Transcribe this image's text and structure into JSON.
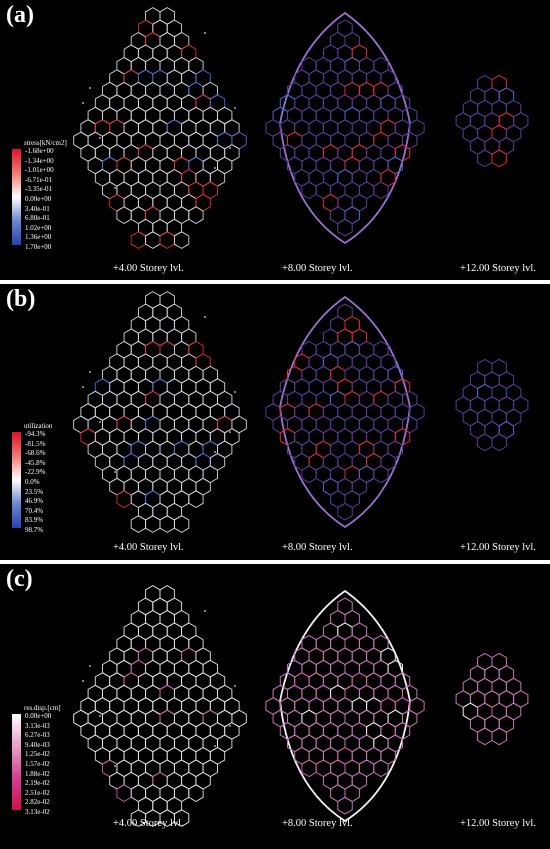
{
  "panels": [
    {
      "id": "a",
      "label": "(a)",
      "legend": {
        "title": "stress[kN/cm2]",
        "ticks": [
          "-1.68e+00",
          "-1.34e+00",
          "-1.01e+00",
          "-6.71e-01",
          "-3.35e-01",
          "0.00e+00",
          "3.40e-01",
          "6.80e-01",
          "1.02e+00",
          "1.36e+00",
          "1.70e+00"
        ],
        "gradient": [
          "#e0102a",
          "#f07a70",
          "#ffffff",
          "#6a86d0",
          "#2a40b0"
        ]
      },
      "levels": [
        "+4.00 Storey lvl.",
        "+8.00 Storey lvl.",
        "+12.00 Storey lvl."
      ],
      "palette": {
        "plan1": "#d8d8e6",
        "plan2": "#5a3c9a",
        "plan3": "#5a3c9a",
        "accent": "#e8283a",
        "accent2": "#4a6ad8"
      }
    },
    {
      "id": "b",
      "label": "(b)",
      "legend": {
        "title": "utilization",
        "ticks": [
          "-94.3%",
          "-81.5%",
          "-68.6%",
          "-45.8%",
          "-22.9%",
          "0.0%",
          "23.5%",
          "46.9%",
          "70.4%",
          "83.9%",
          "98.7%"
        ],
        "gradient": [
          "#e0102a",
          "#f07a70",
          "#ffffff",
          "#6a86d0",
          "#2a40b0"
        ]
      },
      "levels": [
        "+4.00 Storey lvl.",
        "+8.00 Storey lvl.",
        "+12.00 Storey lvl."
      ],
      "palette": {
        "plan1": "#d8d8e6",
        "plan2": "#5a3c9a",
        "plan3": "#5a3c9a",
        "accent": "#e8283a",
        "accent2": "#4a6ad8"
      }
    },
    {
      "id": "c",
      "label": "(c)",
      "legend": {
        "title": "res.disp.[cm]",
        "ticks": [
          "0.00e+00",
          "3.13e-03",
          "6.27e-03",
          "9.40e-03",
          "1.25e-02",
          "1.57e-02",
          "1.88e-02",
          "2.19e-02",
          "2.51e-02",
          "2.82e-02",
          "3.13e-02"
        ],
        "gradient": [
          "#ffffff",
          "#e8a0c8",
          "#d04090",
          "#d01050"
        ]
      },
      "levels": [
        "+4.00 Storey lvl.",
        "+8.00 Storey lvl.",
        "+12.00 Storey lvl."
      ],
      "palette": {
        "plan1": "#e6e6e6",
        "plan2": "#c878b8",
        "plan3": "#c878b8",
        "accent": "#f0f0f0",
        "accent2": "#d85aa8"
      }
    }
  ]
}
